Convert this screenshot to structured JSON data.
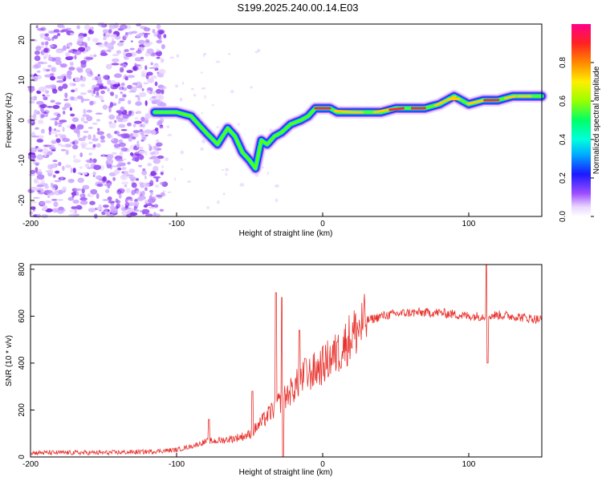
{
  "title": "S199.2025.240.00.14.E03",
  "chart_data": [
    {
      "type": "heatmap",
      "name": "spectrogram",
      "xlabel": "Height of straight line (km)",
      "ylabel": "Frequency (Hz)",
      "xlim": [
        -200,
        150
      ],
      "ylim": [
        -24,
        24
      ],
      "xticks": [
        -200,
        -100,
        0,
        100
      ],
      "yticks": [
        -20,
        -10,
        0,
        10,
        20
      ],
      "ridge": {
        "x": [
          -115,
          -100,
          -90,
          -80,
          -72,
          -65,
          -60,
          -55,
          -50,
          -46,
          -42,
          -38,
          -33,
          -28,
          -22,
          -15,
          -10,
          -5,
          0,
          5,
          10,
          20,
          30,
          40,
          50,
          60,
          70,
          80,
          85,
          90,
          95,
          100,
          110,
          120,
          130,
          140,
          150
        ],
        "y": [
          2,
          2,
          1,
          -3,
          -6,
          -2,
          -4,
          -8,
          -10,
          -12,
          -5,
          -6,
          -4,
          -3,
          -1,
          0,
          1,
          3,
          3,
          3,
          2,
          2,
          2,
          2,
          3,
          3,
          3,
          4,
          5,
          6,
          5,
          4,
          5,
          5,
          6,
          6,
          6
        ]
      },
      "colorbar": {
        "label": "Normalized spectral amplitude",
        "range": [
          0,
          1
        ],
        "ticks": [
          "0.0",
          "0.2",
          "0.4",
          "0.6",
          "0.8"
        ]
      }
    },
    {
      "type": "line",
      "name": "snr",
      "xlabel": "Height of straight line (km)",
      "ylabel": "SNR (10 * v/v)",
      "xlim": [
        -200,
        150
      ],
      "ylim": [
        0,
        820
      ],
      "xticks": [
        -200,
        -100,
        0,
        100
      ],
      "yticks": [
        0,
        200,
        400,
        600,
        800
      ],
      "color": "#e8312c",
      "trend": {
        "x": [
          -200,
          -150,
          -120,
          -100,
          -90,
          -80,
          -70,
          -60,
          -50,
          -40,
          -30,
          -25,
          -20,
          -15,
          -10,
          -5,
          0,
          5,
          10,
          15,
          20,
          25,
          30,
          40,
          50,
          60,
          80,
          100,
          110,
          120,
          130,
          150
        ],
        "y": [
          18,
          18,
          22,
          30,
          45,
          65,
          70,
          80,
          95,
          160,
          230,
          260,
          290,
          330,
          350,
          370,
          390,
          420,
          440,
          480,
          520,
          550,
          580,
          600,
          610,
          615,
          615,
          600,
          600,
          605,
          600,
          585
        ]
      },
      "spikes": [
        {
          "x": -78,
          "y": 160
        },
        {
          "x": -48,
          "y": 280
        },
        {
          "x": -32,
          "y": 700
        },
        {
          "x": -28,
          "y": 680
        },
        {
          "x": -27,
          "y": 0
        },
        {
          "x": -16,
          "y": 540
        },
        {
          "x": -12,
          "y": 420
        },
        {
          "x": 10,
          "y": 490
        },
        {
          "x": 112,
          "y": 820
        },
        {
          "x": 113,
          "y": 400
        }
      ]
    }
  ]
}
